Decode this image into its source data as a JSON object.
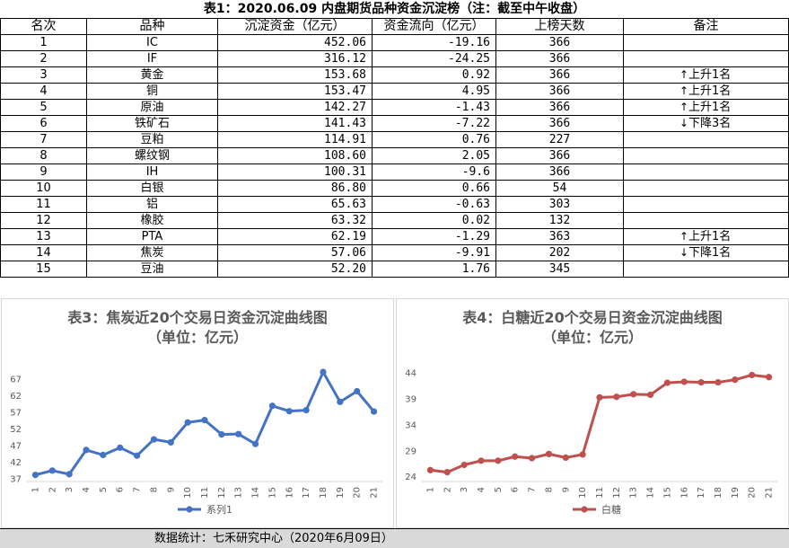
{
  "table": {
    "title": "表1：2020.06.09 内盘期货品种资金沉淀榜（注：截至中午收盘）",
    "headers": [
      "名次",
      "品种",
      "沉淀资金（亿元）",
      "资金流向（亿元）",
      "上榜天数",
      "备注"
    ],
    "rows": [
      {
        "rank": "1",
        "name": "IC",
        "capital": "452.06",
        "flow": "-19.16",
        "days": "366",
        "note": ""
      },
      {
        "rank": "2",
        "name": "IF",
        "capital": "316.12",
        "flow": "-24.25",
        "days": "366",
        "note": ""
      },
      {
        "rank": "3",
        "name": "黄金",
        "capital": "153.68",
        "flow": "0.92",
        "days": "366",
        "note": "上升1名",
        "arrow": "↑"
      },
      {
        "rank": "4",
        "name": "铜",
        "capital": "153.47",
        "flow": "4.95",
        "days": "366",
        "note": "上升1名",
        "arrow": "↑"
      },
      {
        "rank": "5",
        "name": "原油",
        "capital": "142.27",
        "flow": "-1.43",
        "days": "366",
        "note": "上升1名",
        "arrow": "↑"
      },
      {
        "rank": "6",
        "name": "铁矿石",
        "capital": "141.43",
        "flow": "-7.22",
        "days": "366",
        "note": "下降3名",
        "arrow": "↓"
      },
      {
        "rank": "7",
        "name": "豆粕",
        "capital": "114.91",
        "flow": "0.76",
        "days": "227",
        "note": ""
      },
      {
        "rank": "8",
        "name": "螺纹钢",
        "capital": "108.60",
        "flow": "2.05",
        "days": "366",
        "note": ""
      },
      {
        "rank": "9",
        "name": "IH",
        "capital": "100.31",
        "flow": "-9.6",
        "days": "366",
        "note": ""
      },
      {
        "rank": "10",
        "name": "白银",
        "capital": "86.80",
        "flow": "0.66",
        "days": "54",
        "note": ""
      },
      {
        "rank": "11",
        "name": "铝",
        "capital": "65.63",
        "flow": "-0.63",
        "days": "303",
        "note": ""
      },
      {
        "rank": "12",
        "name": "橡胶",
        "capital": "63.32",
        "flow": "0.02",
        "days": "132",
        "note": ""
      },
      {
        "rank": "13",
        "name": "PTA",
        "capital": "62.19",
        "flow": "-1.29",
        "days": "363",
        "note": "上升1名",
        "arrow": "↑"
      },
      {
        "rank": "14",
        "name": "焦炭",
        "capital": "57.06",
        "flow": "-9.91",
        "days": "202",
        "note": "下降1名",
        "arrow": "↓"
      },
      {
        "rank": "15",
        "name": "豆油",
        "capital": "52.20",
        "flow": "1.76",
        "days": "345",
        "note": ""
      }
    ]
  },
  "chart_data": [
    {
      "type": "line",
      "title": "表3：焦炭近20个交易日资金沉淀曲线图",
      "subtitle": "（单位：亿元）",
      "categories": [
        "1",
        "2",
        "3",
        "4",
        "5",
        "6",
        "7",
        "8",
        "9",
        "10",
        "11",
        "12",
        "13",
        "14",
        "15",
        "16",
        "17",
        "18",
        "19",
        "20",
        "21"
      ],
      "series": [
        {
          "name": "系列1",
          "color": "#4472c4",
          "values": [
            38,
            39.3,
            38.2,
            45.5,
            44,
            46.2,
            43.8,
            48.7,
            47.8,
            53.8,
            54.5,
            50.2,
            50.3,
            47.3,
            58.8,
            57.2,
            57.5,
            69,
            60,
            63.2,
            57.1
          ]
        }
      ],
      "yticks": [
        37,
        42,
        47,
        52,
        57,
        62,
        67
      ],
      "ylim": [
        36,
        72
      ],
      "grid": false,
      "legend": "bottom"
    },
    {
      "type": "line",
      "title": "表4：白糖近20个交易日资金沉淀曲线图",
      "subtitle": "（单位：亿元）",
      "categories": [
        "1",
        "2",
        "3",
        "4",
        "5",
        "6",
        "7",
        "8",
        "9",
        "10",
        "11",
        "12",
        "13",
        "14",
        "15",
        "16",
        "17",
        "18",
        "19",
        "20",
        "21"
      ],
      "series": [
        {
          "name": "白糖",
          "color": "#c0504d",
          "values": [
            25.2,
            24.8,
            26.2,
            27,
            27,
            27.8,
            27.5,
            28.3,
            27.6,
            28.2,
            39.2,
            39.3,
            39.8,
            39.7,
            42,
            42.2,
            42.1,
            42.1,
            42.6,
            43.5,
            43.1
          ]
        }
      ],
      "yticks": [
        24,
        29,
        34,
        39,
        44
      ],
      "ylim": [
        23,
        46
      ],
      "grid": false,
      "legend": "bottom"
    }
  ],
  "footer": "数据统计：七禾研究中心（2020年6月09日）"
}
